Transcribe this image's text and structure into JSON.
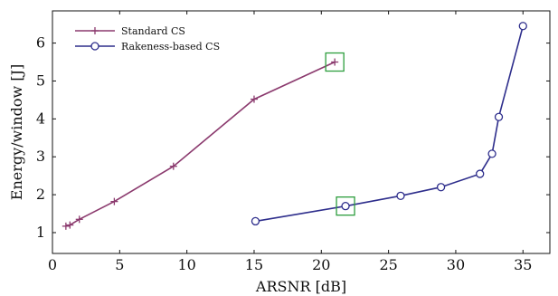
{
  "chart_data": {
    "type": "line",
    "xlabel": "ARSNR [dB]",
    "ylabel": "Energy/window [J]",
    "xlim": [
      0,
      37
    ],
    "ylim": [
      0.45,
      6.85
    ],
    "xticks": [
      0,
      5,
      10,
      15,
      20,
      25,
      30,
      35
    ],
    "yticks": [
      1,
      2,
      3,
      4,
      5,
      6
    ],
    "grid": false,
    "legend_position": "top-left",
    "series": [
      {
        "name": "Standard CS",
        "color": "#8b3a6e",
        "marker": "plus",
        "x": [
          1.0,
          1.3,
          2.0,
          4.6,
          9.0,
          15.0,
          21.0
        ],
        "y": [
          1.17,
          1.2,
          1.35,
          1.82,
          2.75,
          4.52,
          5.5
        ]
      },
      {
        "name": "Rakeness-based CS",
        "color": "#2e2e8c",
        "marker": "circle",
        "x": [
          15.1,
          21.8,
          25.9,
          28.9,
          31.8,
          32.7,
          33.2,
          35.0
        ],
        "y": [
          1.3,
          1.7,
          1.97,
          2.2,
          2.55,
          3.08,
          4.05,
          6.45
        ]
      }
    ],
    "highlights": [
      {
        "x": 21.0,
        "y": 5.5,
        "color": "#2e9e3e"
      },
      {
        "x": 21.8,
        "y": 1.7,
        "color": "#2e9e3e"
      }
    ]
  }
}
